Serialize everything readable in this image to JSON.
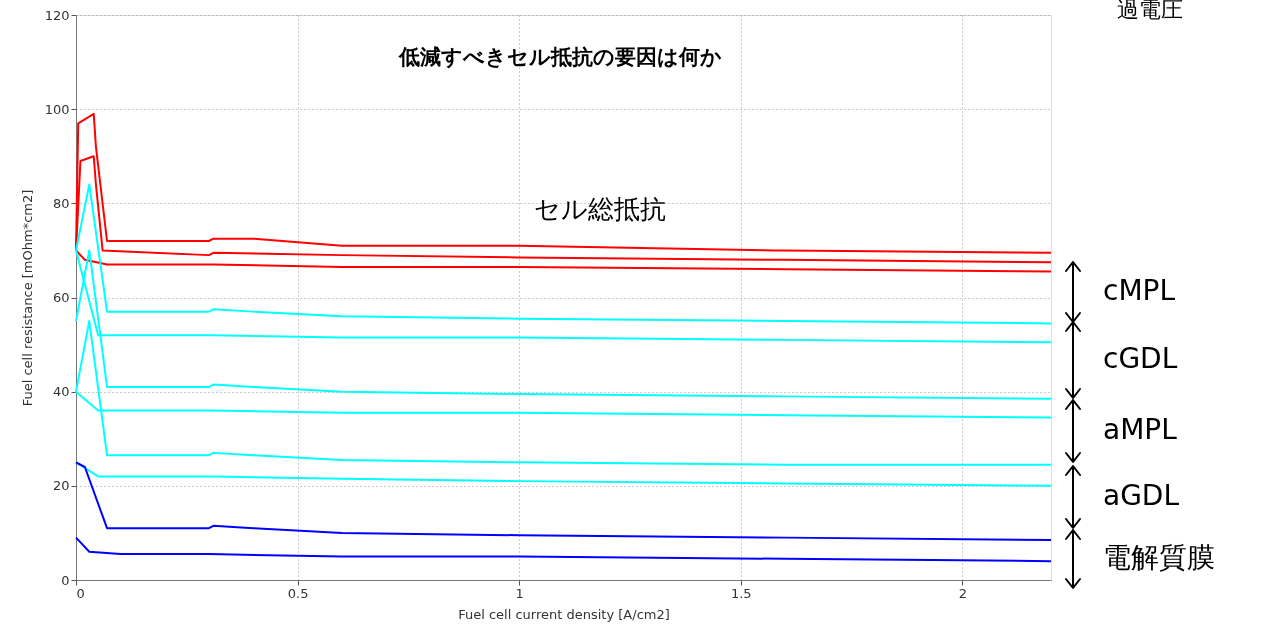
{
  "chart_data": {
    "type": "line",
    "title": "低減すべきセル抵抗の要因は何か",
    "xlabel": "Fuel cell current density [A/cm2]",
    "ylabel": "Fuel cell resistance [mOhm*cm2]",
    "xlim": [
      0,
      2.2
    ],
    "xticks": [
      0,
      0.5,
      1,
      1.5,
      2
    ],
    "ylim": [
      0,
      120
    ],
    "yticks": [
      0,
      20,
      40,
      60,
      80,
      100,
      120
    ],
    "grid": true,
    "legend": false,
    "marker": "none",
    "line_style": "solid",
    "annotations": [
      "セル総抵抗",
      "cMPL",
      "cGDL",
      "aMPL",
      "aGDL",
      "電解質膜",
      "過電圧"
    ],
    "series": [
      {
        "color": "#ff0000",
        "x": [
          0,
          0.005,
          0.04,
          0.045,
          0.07,
          0.3,
          0.31,
          0.4,
          0.6,
          1.0,
          1.58,
          1.6,
          2.2
        ],
        "values": [
          70,
          97,
          99,
          92,
          72,
          72,
          72.5,
          72.5,
          71,
          71,
          70,
          70,
          69.5
        ]
      },
      {
        "color": "#ff0000",
        "x": [
          0,
          0.01,
          0.04,
          0.045,
          0.06,
          0.3,
          0.31,
          0.6,
          1.0,
          1.6,
          2.2
        ],
        "values": [
          70,
          89,
          90,
          84,
          70,
          69,
          69.5,
          69,
          68.5,
          68,
          67.5
        ]
      },
      {
        "color": "#ff0000",
        "x": [
          0,
          0.02,
          0.07,
          0.3,
          0.31,
          0.6,
          1.0,
          1.6,
          2.2
        ],
        "values": [
          70,
          68,
          67,
          67,
          67,
          66.5,
          66.5,
          66,
          65.5
        ]
      },
      {
        "color": "#00ffff",
        "x": [
          0,
          0.03,
          0.07,
          0.3,
          0.31,
          0.4,
          0.6,
          1.0,
          1.6,
          2.2
        ],
        "values": [
          70,
          84,
          57,
          57,
          57.5,
          57,
          56,
          55.5,
          55,
          54.5
        ]
      },
      {
        "color": "#00ffff",
        "x": [
          0,
          0.05,
          0.3,
          0.31,
          0.6,
          1.0,
          1.6,
          2.2
        ],
        "values": [
          70,
          52,
          52,
          52,
          51.5,
          51.5,
          51,
          50.5
        ]
      },
      {
        "color": "#00ffff",
        "x": [
          0,
          0.03,
          0.07,
          0.3,
          0.31,
          0.4,
          0.6,
          1.0,
          1.6,
          2.2
        ],
        "values": [
          55,
          70,
          41,
          41,
          41.5,
          41,
          40,
          39.5,
          39,
          38.5
        ]
      },
      {
        "color": "#00ffff",
        "x": [
          0,
          0.05,
          0.3,
          0.31,
          0.6,
          1.0,
          1.6,
          2.2
        ],
        "values": [
          40,
          36,
          36,
          36,
          35.5,
          35.5,
          35,
          34.5
        ]
      },
      {
        "color": "#00ffff",
        "x": [
          0,
          0.03,
          0.07,
          0.3,
          0.31,
          0.4,
          0.6,
          1.0,
          1.6,
          2.2
        ],
        "values": [
          40,
          55,
          26.5,
          26.5,
          27,
          26.5,
          25.5,
          25,
          24.5,
          24.5
        ]
      },
      {
        "color": "#00ffff",
        "x": [
          0,
          0.05,
          0.3,
          0.31,
          0.6,
          1.0,
          1.6,
          2.2
        ],
        "values": [
          25,
          22,
          22,
          22,
          21.5,
          21,
          20.5,
          20
        ]
      },
      {
        "color": "#0000ff",
        "x": [
          0,
          0.02,
          0.07,
          0.3,
          0.31,
          0.4,
          0.6,
          1.0,
          1.6,
          2.2
        ],
        "values": [
          25,
          24,
          11,
          11,
          11.5,
          11,
          10,
          9.5,
          9,
          8.5
        ]
      },
      {
        "color": "#0000ff",
        "x": [
          0,
          0.03,
          0.1,
          0.3,
          0.6,
          1.0,
          1.6,
          2.2
        ],
        "values": [
          9,
          6,
          5.5,
          5.5,
          5,
          5,
          4.5,
          4
        ]
      }
    ]
  }
}
